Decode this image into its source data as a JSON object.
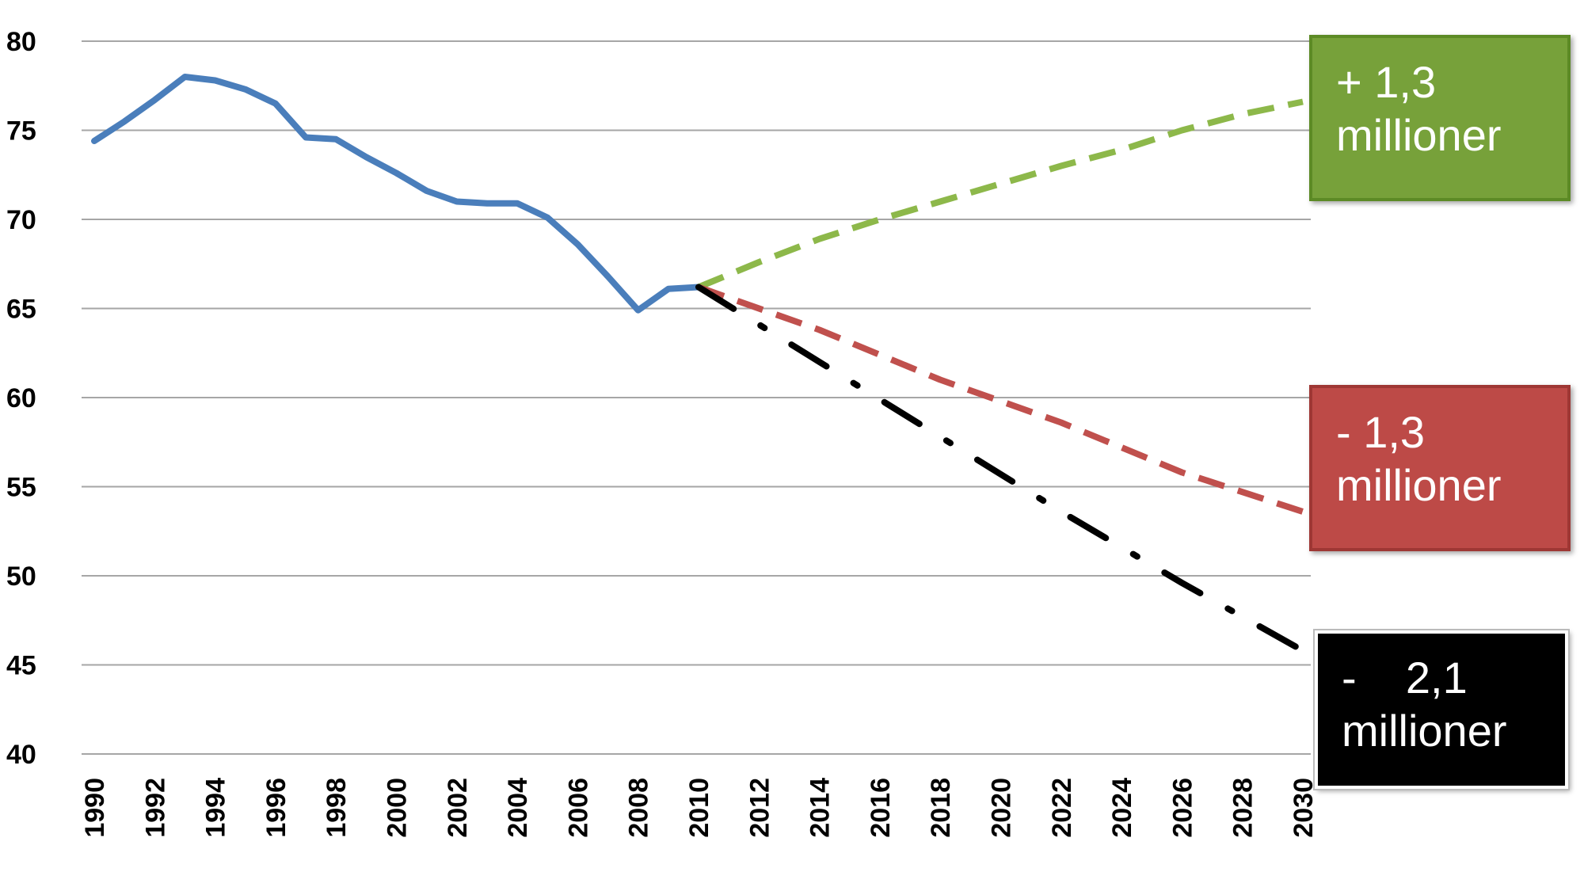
{
  "chart_data": {
    "type": "line",
    "yticks": [
      "80",
      "75",
      "70",
      "65",
      "60",
      "55",
      "50",
      "45",
      "40"
    ],
    "ylim": [
      40,
      80
    ],
    "xlim": [
      1990,
      2030
    ],
    "xticks": [
      "1990",
      "1992",
      "1994",
      "1996",
      "1998",
      "2000",
      "2002",
      "2004",
      "2006",
      "2008",
      "2010",
      "2012",
      "2014",
      "2016",
      "2018",
      "2020",
      "2022",
      "2024",
      "2026",
      "2028",
      "2030"
    ],
    "grid": true,
    "series": [
      {
        "color": "#4a7ebb",
        "style": "solid",
        "x": [
          1990,
          1991,
          1992,
          1993,
          1994,
          1995,
          1996,
          1997,
          1998,
          1999,
          2000,
          2001,
          2002,
          2003,
          2004,
          2005,
          2006,
          2007,
          2008,
          2009,
          2010
        ],
        "y": [
          74.4,
          75.5,
          76.7,
          78.0,
          77.8,
          77.3,
          76.5,
          74.6,
          74.5,
          73.5,
          72.6,
          71.6,
          71.0,
          70.9,
          70.9,
          70.1,
          68.6,
          66.8,
          64.9,
          66.1,
          66.2
        ]
      },
      {
        "color": "#8db84a",
        "style": "dashed",
        "x": [
          2010,
          2012,
          2014,
          2016,
          2018,
          2020,
          2022,
          2024,
          2026,
          2028,
          2030
        ],
        "y": [
          66.2,
          67.6,
          68.9,
          70.0,
          71.0,
          72.0,
          73.0,
          73.9,
          75.0,
          75.9,
          76.6
        ]
      },
      {
        "color": "#c0504d",
        "style": "dashed",
        "x": [
          2010,
          2014,
          2018,
          2022,
          2026,
          2030
        ],
        "y": [
          66.2,
          63.8,
          61.0,
          58.6,
          55.8,
          53.6
        ]
      },
      {
        "color": "#000000",
        "style": "dashdot",
        "x": [
          2010,
          2014,
          2018,
          2022,
          2026,
          2030
        ],
        "y": [
          66.2,
          62.0,
          57.8,
          53.6,
          49.6,
          45.8
        ]
      }
    ],
    "annotations": [
      {
        "line1": "+ 1,3",
        "line2": "millioner",
        "color": "#77a13a"
      },
      {
        "line1": "- 1,3",
        "line2": "millioner",
        "color": "#bd4a47"
      },
      {
        "line1": "-    2,1",
        "line2": "millioner",
        "color": "#000000"
      }
    ]
  }
}
